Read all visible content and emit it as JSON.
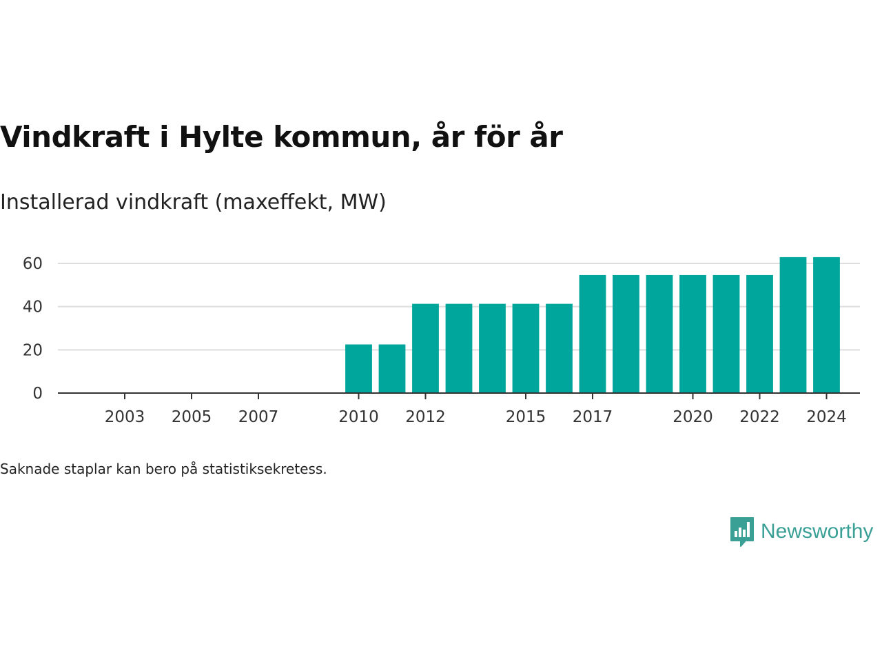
{
  "title": "Vindkraft i Hylte kommun, år för år",
  "subtitle": "Installerad vindkraft (maxeffekt, MW)",
  "footnote": "Saknade staplar kan bero på statistiksekretess.",
  "brand": {
    "name": "Newsworthy",
    "logo_icon": "chart-speech-bubble-icon",
    "color": "#3aa095"
  },
  "chart_data": {
    "type": "bar",
    "categories": [
      "2010",
      "2011",
      "2012",
      "2013",
      "2014",
      "2015",
      "2016",
      "2017",
      "2018",
      "2019",
      "2020",
      "2021",
      "2022",
      "2023",
      "2024"
    ],
    "values": [
      22.5,
      22.5,
      41.3,
      41.3,
      41.3,
      41.3,
      41.3,
      54.6,
      54.6,
      54.6,
      54.6,
      54.6,
      54.6,
      62.9,
      62.9
    ],
    "x_tick_labels": [
      "2003",
      "2005",
      "2007",
      "2010",
      "2012",
      "2015",
      "2017",
      "2020",
      "2022",
      "2024"
    ],
    "x_range": [
      2001,
      2025
    ],
    "y_ticks": [
      0,
      20,
      40,
      60
    ],
    "ylim": [
      0,
      60
    ],
    "grid": true,
    "bar_color": "#00a69c",
    "title": "Vindkraft i Hylte kommun, år för år",
    "subtitle": "Installerad vindkraft (maxeffekt, MW)",
    "xlabel": "",
    "ylabel": ""
  }
}
